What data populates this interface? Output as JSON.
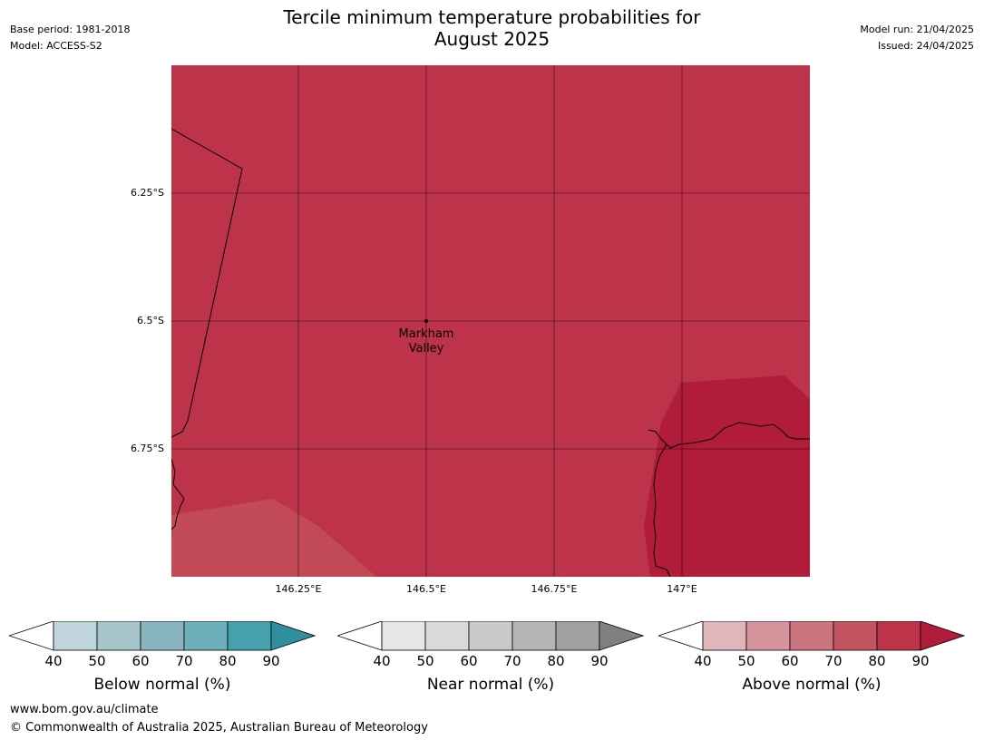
{
  "header": {
    "title_line1": "Tercile minimum temperature probabilities for",
    "title_line2": "August 2025",
    "base_period": "Base period: 1981-2018",
    "model": "Model: ACCESS-S2",
    "model_run": "Model run: 21/04/2025",
    "issued": "Issued: 24/04/2025"
  },
  "map": {
    "lat_labels": [
      "6.25°S",
      "6.5°S",
      "6.75°S"
    ],
    "lon_labels": [
      "146.25°E",
      "146.5°E",
      "146.75°E",
      "147°E"
    ],
    "place": {
      "name_line1": "Markham",
      "name_line2": "Valley",
      "lat": -6.5,
      "lon": 146.5
    },
    "colors": {
      "main": "#bd3349",
      "dark": "#b01c39",
      "light": "#c24a56"
    }
  },
  "colorbars": [
    {
      "label": "Below normal (%)",
      "ticks": [
        "40",
        "50",
        "60",
        "70",
        "80",
        "90"
      ],
      "colors": [
        "#ffffff",
        "#bfd5db",
        "#a6c6cc",
        "#89b5bf",
        "#6caeb9",
        "#47a0ad",
        "#2f8f9d"
      ]
    },
    {
      "label": "Near normal (%)",
      "ticks": [
        "40",
        "50",
        "60",
        "70",
        "80",
        "90"
      ],
      "colors": [
        "#ffffff",
        "#e6e6e6",
        "#d9d9d9",
        "#c9c9c9",
        "#b5b5b5",
        "#a0a0a0",
        "#808080"
      ]
    },
    {
      "label": "Above normal (%)",
      "ticks": [
        "40",
        "50",
        "60",
        "70",
        "80",
        "90"
      ],
      "colors": [
        "#ffffff",
        "#e1b6bb",
        "#d6959c",
        "#cc757e",
        "#c25561",
        "#bd3349",
        "#b01c39"
      ]
    }
  ],
  "footer": {
    "url": "www.bom.gov.au/climate",
    "copyright": "© Commonwealth of Australia 2025, Australian Bureau of Meteorology"
  }
}
